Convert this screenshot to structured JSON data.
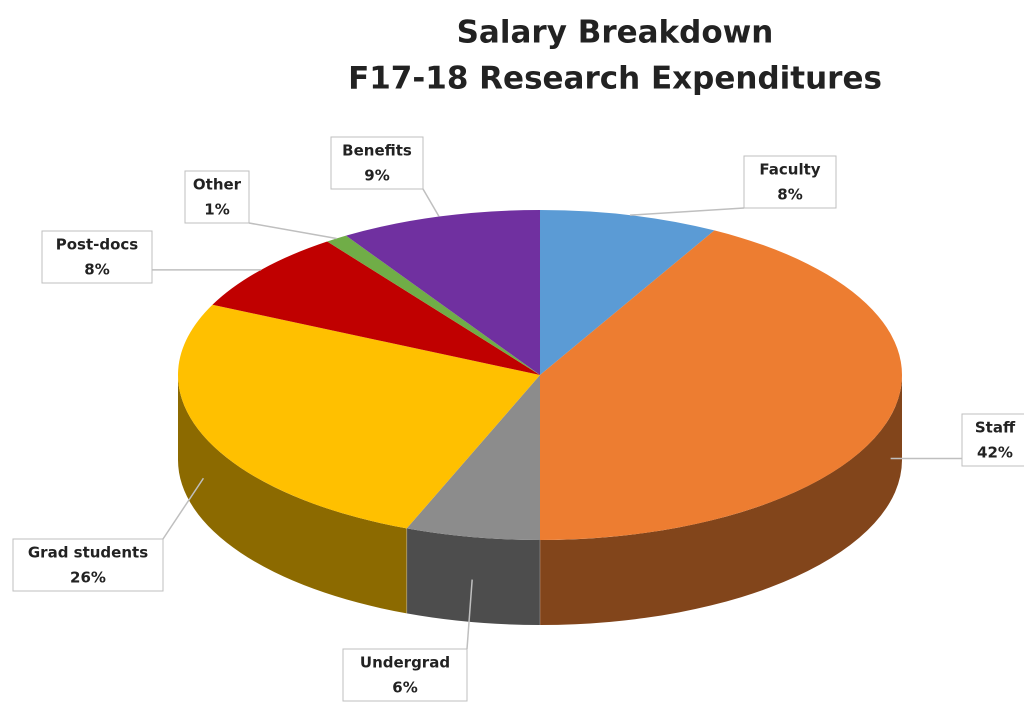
{
  "chart_data": {
    "type": "pie3d",
    "title": "Salary Breakdown",
    "subtitle": "F17-18 Research Expenditures",
    "categories": [
      "Faculty",
      "Staff",
      "Undergrad",
      "Grad students",
      "Post-docs",
      "Other",
      "Benefits"
    ],
    "values": [
      8,
      42,
      6,
      26,
      8,
      1,
      9
    ],
    "value_labels": [
      "8%",
      "42%",
      "6%",
      "26%",
      "8%",
      "1%",
      "9%"
    ],
    "colors": [
      "#5b9bd5",
      "#ed7d31",
      "#8c8c8c",
      "#ffc000",
      "#c00000",
      "#70ad47",
      "#7030a0"
    ]
  }
}
